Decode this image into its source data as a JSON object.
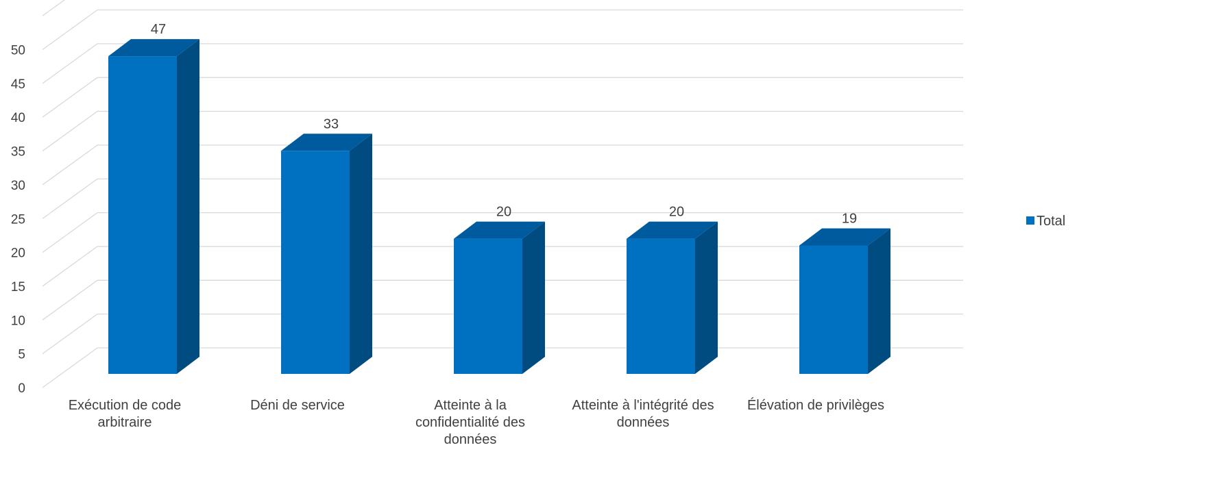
{
  "chart_data": {
    "type": "bar",
    "style": "3d-clustered-column",
    "categories": [
      [
        "Exécution de code",
        "arbitraire"
      ],
      [
        "Déni de service"
      ],
      [
        "Atteinte à la",
        "confidentialité des",
        "données"
      ],
      [
        "Atteinte à l'intégrité des",
        "données"
      ],
      [
        "Élévation de privilèges"
      ]
    ],
    "series": [
      {
        "name": "Total",
        "values": [
          47,
          33,
          20,
          20,
          19
        ],
        "color": "#0070C0",
        "side_color": "#004B80",
        "top_color": "#005A9E"
      }
    ],
    "data_labels": [
      "47",
      "33",
      "20",
      "20",
      "19"
    ],
    "yticks": [
      "0",
      "5",
      "10",
      "15",
      "20",
      "25",
      "30",
      "35",
      "40",
      "45",
      "50"
    ],
    "ylim": [
      0,
      55
    ],
    "grid": true,
    "legend": {
      "position": "right",
      "entries": [
        "Total"
      ]
    },
    "title": "",
    "xlabel": "",
    "ylabel": ""
  }
}
